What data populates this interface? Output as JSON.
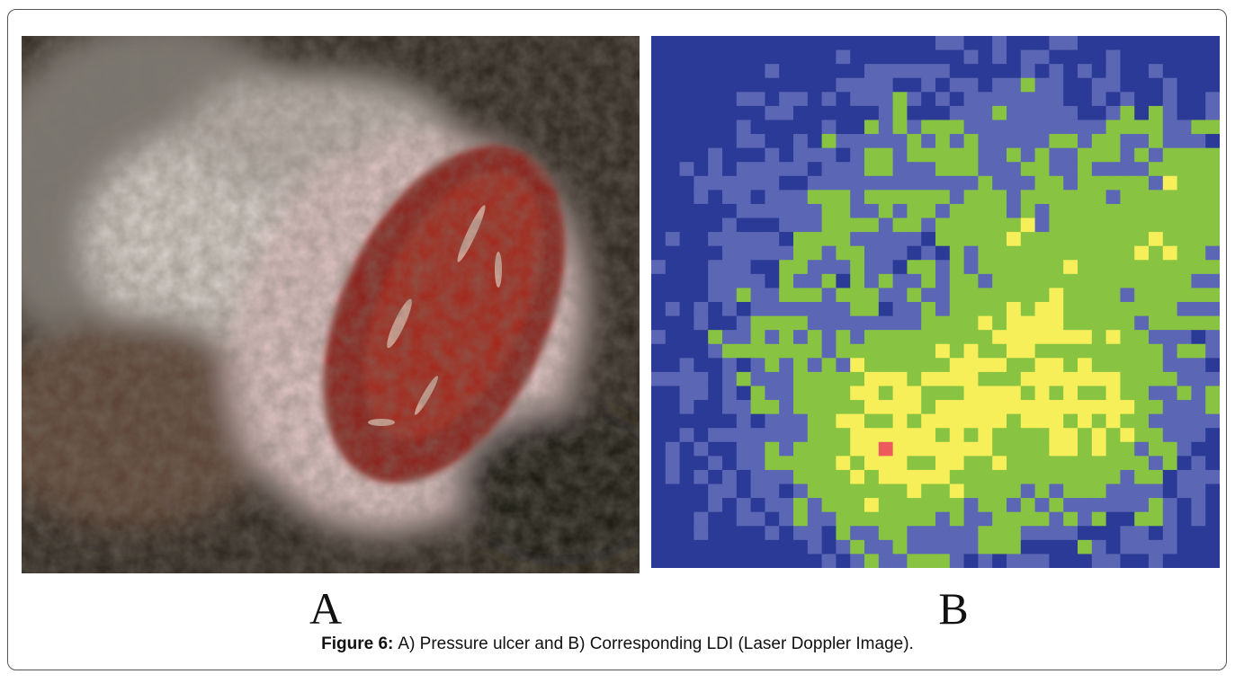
{
  "panels": [
    {
      "label": "A"
    },
    {
      "label": "B"
    }
  ],
  "caption": {
    "label": "Figure 6:",
    "text": "A) Pressure ulcer and B) Corresponding LDI (Laser Doppler Image)."
  }
}
